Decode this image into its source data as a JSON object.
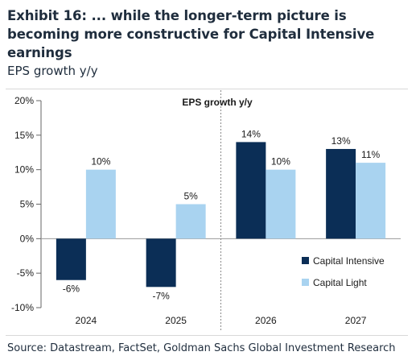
{
  "heading": {
    "title": "Exhibit 16: ... while the longer-term picture is becoming more constructive for Capital Intensive earnings",
    "subtitle": "EPS growth y/y"
  },
  "source": "Source: Datastream, FactSet, Goldman Sachs Global Investment Research",
  "chart_data": {
    "type": "bar",
    "title": "EPS growth y/y",
    "categories": [
      "2024",
      "2025",
      "2026",
      "2027"
    ],
    "series": [
      {
        "name": "Capital Intensive",
        "values": [
          -6,
          -7,
          14,
          13
        ],
        "labels": [
          "-6%",
          "-7%",
          "14%",
          "13%"
        ],
        "color": "#0b2e56"
      },
      {
        "name": "Capital Light",
        "values": [
          10,
          5,
          10,
          11
        ],
        "labels": [
          "10%",
          "5%",
          "10%",
          "11%"
        ],
        "color": "#a9d3f0"
      }
    ],
    "ylim": [
      -10,
      20
    ],
    "yticks": [
      20,
      15,
      10,
      5,
      0,
      -5,
      -10
    ],
    "ytick_labels": [
      "20%",
      "15%",
      "10%",
      "5%",
      "0%",
      "-5%",
      "-10%"
    ],
    "xlabel": "",
    "ylabel": "",
    "grid": false,
    "legend_position": "bottom-right",
    "divider_after_category": "2025"
  }
}
